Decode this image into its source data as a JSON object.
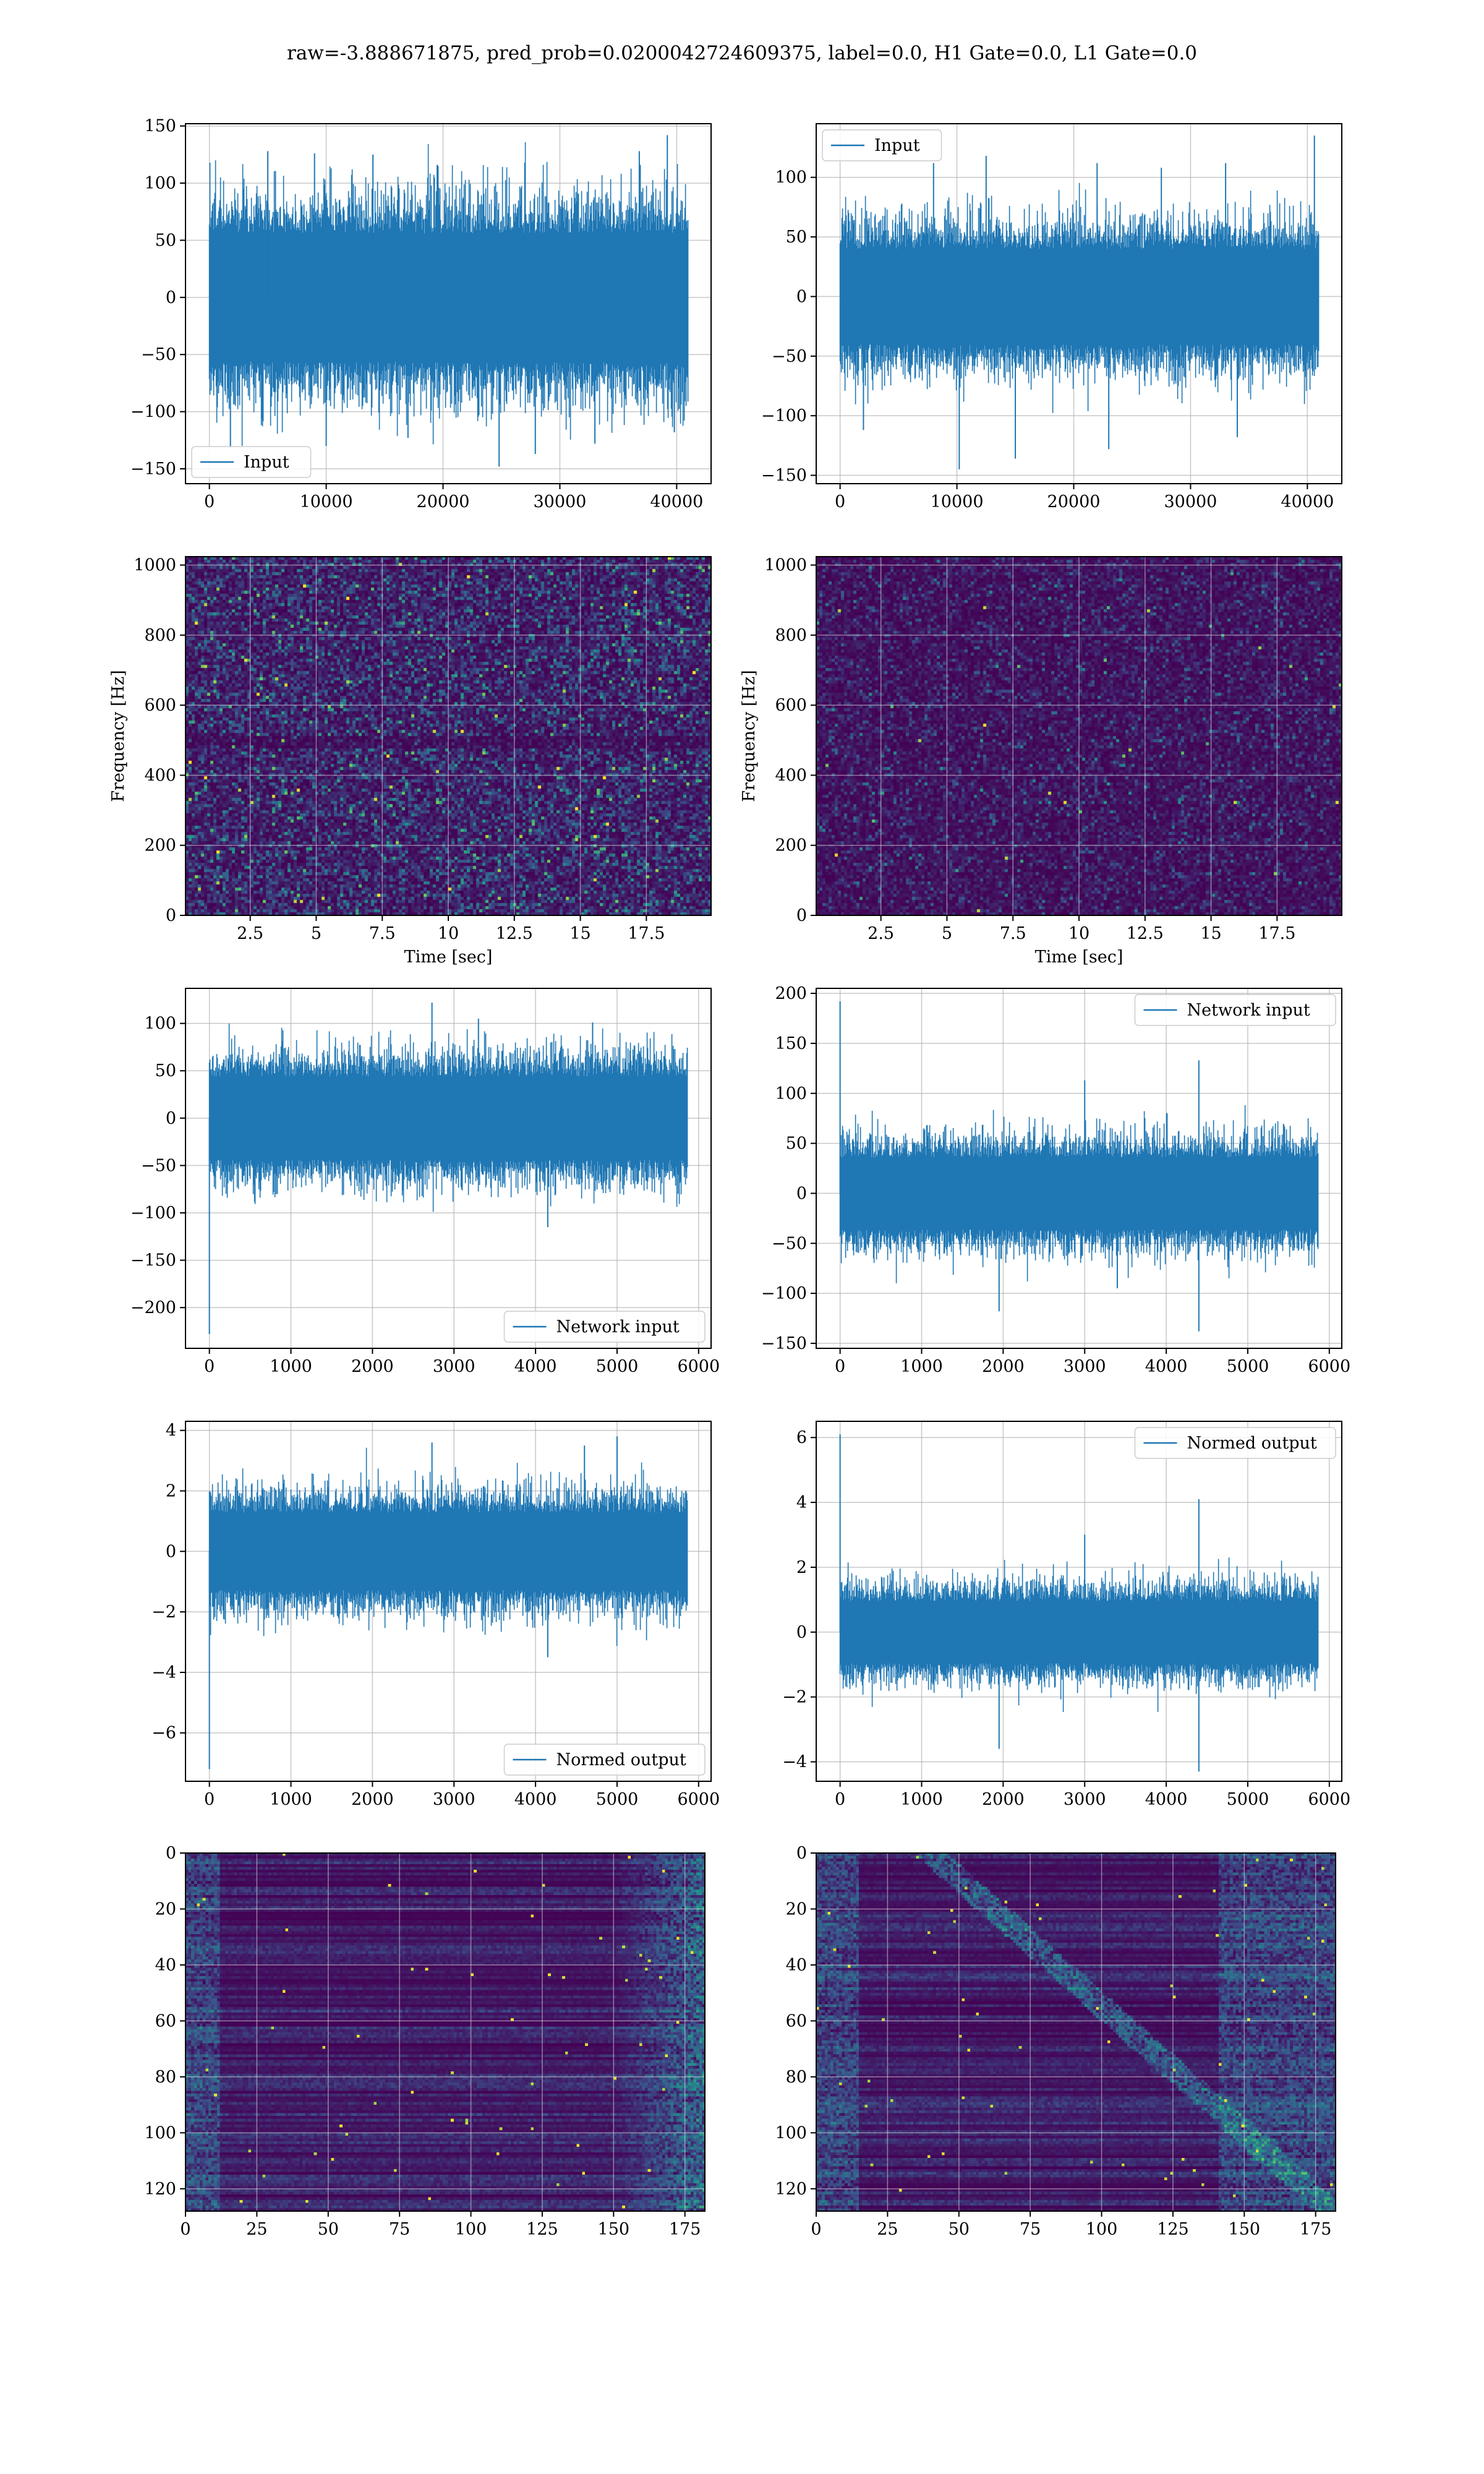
{
  "figure": {
    "title": "raw=-3.888671875, pred_prob=0.0200042724609375, label=0.0, H1 Gate=0.0, L1 Gate=0.0"
  },
  "colors": {
    "line": "#1f77b4",
    "viridis_dark": "#440154",
    "viridis_mid": "#21918c",
    "viridis_bright": "#fde725",
    "grid": "#b0b0b0"
  },
  "chart_data": [
    {
      "id": "input-h1",
      "type": "line",
      "title": "",
      "xlabel": "",
      "ylabel": "",
      "xlim": [
        -2045,
        42945
      ],
      "ylim": [
        -163,
        152
      ],
      "xticks": [
        0,
        10000,
        20000,
        30000,
        40000
      ],
      "yticks": [
        -150,
        -100,
        -50,
        0,
        50,
        100,
        150
      ],
      "legend": "lower-left",
      "series": [
        {
          "name": "Input",
          "n_samples": 40960,
          "x_range": [
            0,
            40960
          ],
          "envelope": {
            "upper": 70,
            "lower": -70
          },
          "spikes": [
            [
              5000,
              128
            ],
            [
              9000,
              126
            ],
            [
              14000,
              125
            ],
            [
              19500,
              116
            ],
            [
              27000,
              118
            ],
            [
              36800,
              128
            ],
            [
              39200,
              142
            ],
            [
              1800,
              -132
            ],
            [
              10000,
              -130
            ],
            [
              17000,
              -123
            ],
            [
              24800,
              -148
            ],
            [
              27900,
              -137
            ],
            [
              33000,
              -128
            ],
            [
              39800,
              -118
            ]
          ]
        }
      ],
      "grid": true
    },
    {
      "id": "input-l1",
      "type": "line",
      "title": "",
      "xlabel": "",
      "ylabel": "",
      "xlim": [
        -2045,
        42945
      ],
      "ylim": [
        -157,
        145
      ],
      "xticks": [
        0,
        10000,
        20000,
        30000,
        40000
      ],
      "yticks": [
        -150,
        -100,
        -50,
        0,
        50,
        100
      ],
      "legend": "upper-left",
      "series": [
        {
          "name": "Input",
          "n_samples": 40960,
          "x_range": [
            0,
            40960
          ],
          "envelope": {
            "upper": 50,
            "lower": -50
          },
          "spikes": [
            [
              8000,
              112
            ],
            [
              12500,
              118
            ],
            [
              22000,
              112
            ],
            [
              27500,
              108
            ],
            [
              33000,
              112
            ],
            [
              40600,
              135
            ],
            [
              2000,
              -112
            ],
            [
              10200,
              -145
            ],
            [
              15000,
              -136
            ],
            [
              23000,
              -128
            ],
            [
              34000,
              -118
            ]
          ]
        }
      ],
      "grid": true
    },
    {
      "id": "spectrogram-h1",
      "type": "heatmap",
      "title": "",
      "xlabel": "Time [sec]",
      "ylabel": "Frequency [Hz]",
      "xlim": [
        0.05,
        19.95
      ],
      "ylim": [
        0,
        1024
      ],
      "xticks": [
        2.5,
        5.0,
        7.5,
        10.0,
        12.5,
        15.0,
        17.5
      ],
      "yticks": [
        0,
        200,
        400,
        600,
        800,
        1000
      ],
      "colormap": "viridis",
      "intensity": 0.55,
      "grid": true
    },
    {
      "id": "spectrogram-l1",
      "type": "heatmap",
      "title": "",
      "xlabel": "Time [sec]",
      "ylabel": "Frequency [Hz]",
      "xlim": [
        0.05,
        19.95
      ],
      "ylim": [
        0,
        1024
      ],
      "xticks": [
        2.5,
        5.0,
        7.5,
        10.0,
        12.5,
        15.0,
        17.5
      ],
      "yticks": [
        0,
        200,
        400,
        600,
        800,
        1000
      ],
      "colormap": "viridis",
      "intensity": 0.3,
      "grid": true
    },
    {
      "id": "network-input-h1",
      "type": "line",
      "title": "",
      "xlabel": "",
      "ylabel": "",
      "xlim": [
        -293,
        6153
      ],
      "ylim": [
        -243,
        137
      ],
      "xticks": [
        0,
        1000,
        2000,
        3000,
        4000,
        5000,
        6000
      ],
      "yticks": [
        -200,
        -150,
        -100,
        -50,
        0,
        50,
        100
      ],
      "legend": "lower-right",
      "series": [
        {
          "name": "Network input",
          "n_samples": 5860,
          "x_range": [
            0,
            5860
          ],
          "envelope": {
            "upper": 55,
            "lower": -55
          },
          "spikes": [
            [
              0,
              -228
            ],
            [
              2730,
              122
            ],
            [
              4150,
              -115
            ],
            [
              3300,
              105
            ],
            [
              4700,
              101
            ]
          ]
        }
      ],
      "grid": true
    },
    {
      "id": "network-input-l1",
      "type": "line",
      "title": "",
      "xlabel": "",
      "ylabel": "",
      "xlim": [
        -293,
        6153
      ],
      "ylim": [
        -155,
        205
      ],
      "xticks": [
        0,
        1000,
        2000,
        3000,
        4000,
        5000,
        6000
      ],
      "yticks": [
        -150,
        -100,
        -50,
        0,
        50,
        100,
        150,
        200
      ],
      "legend": "upper-right",
      "series": [
        {
          "name": "Network input",
          "n_samples": 5860,
          "x_range": [
            0,
            5860
          ],
          "envelope": {
            "upper": 45,
            "lower": -45
          },
          "spikes": [
            [
              0,
              192
            ],
            [
              3000,
              113
            ],
            [
              4400,
              133
            ],
            [
              1950,
              -118
            ],
            [
              4400,
              -138
            ],
            [
              3400,
              -95
            ]
          ]
        }
      ],
      "grid": true
    },
    {
      "id": "normed-output-h1",
      "type": "line",
      "title": "",
      "xlabel": "",
      "ylabel": "",
      "xlim": [
        -293,
        6153
      ],
      "ylim": [
        -7.6,
        4.3
      ],
      "xticks": [
        0,
        1000,
        2000,
        3000,
        4000,
        5000,
        6000
      ],
      "yticks": [
        -6,
        -4,
        -2,
        0,
        2,
        4
      ],
      "legend": "lower-right",
      "series": [
        {
          "name": "Normed output",
          "n_samples": 5860,
          "x_range": [
            0,
            5860
          ],
          "envelope": {
            "upper": 1.6,
            "lower": -1.6
          },
          "spikes": [
            [
              0,
              -7.2
            ],
            [
              2730,
              3.6
            ],
            [
              4150,
              -3.5
            ],
            [
              5000,
              3.8
            ],
            [
              4600,
              3.5
            ]
          ]
        }
      ],
      "grid": true
    },
    {
      "id": "normed-output-l1",
      "type": "line",
      "title": "",
      "xlabel": "",
      "ylabel": "",
      "xlim": [
        -293,
        6153
      ],
      "ylim": [
        -4.6,
        6.5
      ],
      "xticks": [
        0,
        1000,
        2000,
        3000,
        4000,
        5000,
        6000
      ],
      "yticks": [
        -4,
        -2,
        0,
        2,
        4,
        6
      ],
      "legend": "upper-right",
      "series": [
        {
          "name": "Normed output",
          "n_samples": 5860,
          "x_range": [
            0,
            5860
          ],
          "envelope": {
            "upper": 1.2,
            "lower": -1.2
          },
          "spikes": [
            [
              0,
              6.1
            ],
            [
              4400,
              4.1
            ],
            [
              4400,
              -4.3
            ],
            [
              1950,
              -3.6
            ],
            [
              3000,
              3.0
            ]
          ]
        }
      ],
      "grid": true
    },
    {
      "id": "feature-map-h1",
      "type": "heatmap",
      "title": "",
      "xlabel": "",
      "ylabel": "",
      "xlim": [
        0,
        182
      ],
      "ylim": [
        128,
        0
      ],
      "xticks": [
        0,
        25,
        50,
        75,
        100,
        125,
        150,
        175
      ],
      "yticks": [
        0,
        20,
        40,
        60,
        80,
        100,
        120
      ],
      "colormap": "viridis",
      "structure": "row-bands, bright right edge",
      "grid": true
    },
    {
      "id": "feature-map-l1",
      "type": "heatmap",
      "title": "",
      "xlabel": "",
      "ylabel": "",
      "xlim": [
        0,
        182
      ],
      "ylim": [
        128,
        0
      ],
      "xticks": [
        0,
        25,
        50,
        75,
        100,
        125,
        150,
        175
      ],
      "yticks": [
        0,
        20,
        40,
        60,
        80,
        100,
        120
      ],
      "colormap": "viridis",
      "structure": "row-bands, diagonal streaks",
      "grid": true
    }
  ]
}
